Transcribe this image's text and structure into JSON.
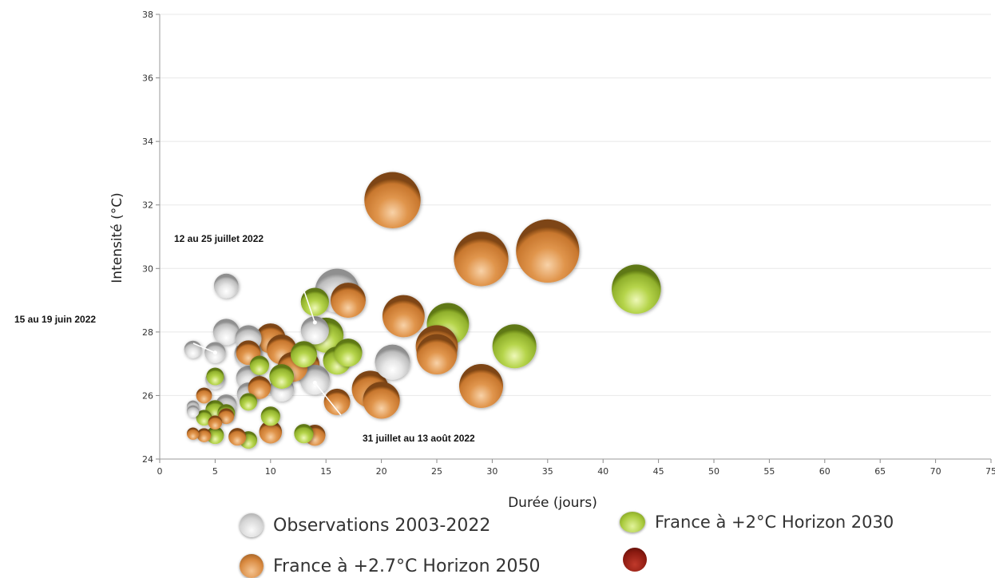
{
  "chart_data": {
    "type": "scatter",
    "xlabel": "Durée  (jours)",
    "ylabel": "Intensité  (°C)",
    "xlim": [
      0,
      75
    ],
    "ylim": [
      24,
      38
    ],
    "xticks": [
      0,
      5,
      10,
      15,
      20,
      25,
      30,
      35,
      40,
      45,
      50,
      55,
      60,
      65,
      70,
      75
    ],
    "yticks": [
      24,
      26,
      28,
      30,
      32,
      34,
      36,
      38
    ],
    "grid": "horizontal",
    "bubble_size": "relative",
    "series": [
      {
        "name": "Observations 2003-2022",
        "color": "#d9d9d9",
        "points": [
          {
            "x": 3,
            "y": 27.45,
            "s": 0.5
          },
          {
            "x": 5,
            "y": 27.35,
            "s": 0.6
          },
          {
            "x": 3,
            "y": 25.65,
            "s": 0.35
          },
          {
            "x": 3,
            "y": 25.5,
            "s": 0.35
          },
          {
            "x": 6,
            "y": 29.45,
            "s": 0.7
          },
          {
            "x": 6,
            "y": 28.0,
            "s": 0.75
          },
          {
            "x": 6,
            "y": 25.7,
            "s": 0.6
          },
          {
            "x": 5,
            "y": 26.5,
            "s": 0.55
          },
          {
            "x": 8,
            "y": 27.8,
            "s": 0.75
          },
          {
            "x": 8,
            "y": 27.3,
            "s": 0.8
          },
          {
            "x": 8,
            "y": 26.55,
            "s": 0.7
          },
          {
            "x": 8,
            "y": 26.05,
            "s": 0.65
          },
          {
            "x": 11,
            "y": 26.2,
            "s": 0.7
          },
          {
            "x": 14,
            "y": 28.05,
            "s": 0.8
          },
          {
            "x": 14,
            "y": 26.5,
            "s": 0.85
          },
          {
            "x": 16,
            "y": 29.3,
            "s": 1.25
          },
          {
            "x": 21,
            "y": 27.05,
            "s": 1.0
          }
        ]
      },
      {
        "name": "France à +2°C Horizon 2030",
        "color": "#a9ca3c",
        "points": [
          {
            "x": 5,
            "y": 26.6,
            "s": 0.5
          },
          {
            "x": 4,
            "y": 25.3,
            "s": 0.45
          },
          {
            "x": 5,
            "y": 25.55,
            "s": 0.55
          },
          {
            "x": 6,
            "y": 25.45,
            "s": 0.5
          },
          {
            "x": 5,
            "y": 24.75,
            "s": 0.5
          },
          {
            "x": 8,
            "y": 24.6,
            "s": 0.5
          },
          {
            "x": 8,
            "y": 25.8,
            "s": 0.5
          },
          {
            "x": 9,
            "y": 26.95,
            "s": 0.55
          },
          {
            "x": 10,
            "y": 25.35,
            "s": 0.55
          },
          {
            "x": 11,
            "y": 26.6,
            "s": 0.7
          },
          {
            "x": 13,
            "y": 27.3,
            "s": 0.75
          },
          {
            "x": 13,
            "y": 24.8,
            "s": 0.55
          },
          {
            "x": 14,
            "y": 28.95,
            "s": 0.8
          },
          {
            "x": 15,
            "y": 27.9,
            "s": 1.0
          },
          {
            "x": 16,
            "y": 27.1,
            "s": 0.8
          },
          {
            "x": 17,
            "y": 27.35,
            "s": 0.8
          },
          {
            "x": 26,
            "y": 28.25,
            "s": 1.2
          },
          {
            "x": 32,
            "y": 27.55,
            "s": 1.25
          },
          {
            "x": 43,
            "y": 29.35,
            "s": 1.4
          }
        ]
      },
      {
        "name": "France à +2.7°C Horizon 2050",
        "color": "#d98a40",
        "points": [
          {
            "x": 3,
            "y": 24.8,
            "s": 0.35
          },
          {
            "x": 4,
            "y": 24.75,
            "s": 0.4
          },
          {
            "x": 4,
            "y": 26.0,
            "s": 0.45
          },
          {
            "x": 5,
            "y": 25.15,
            "s": 0.4
          },
          {
            "x": 6,
            "y": 25.35,
            "s": 0.45
          },
          {
            "x": 7,
            "y": 24.7,
            "s": 0.5
          },
          {
            "x": 8,
            "y": 27.35,
            "s": 0.7
          },
          {
            "x": 9,
            "y": 26.25,
            "s": 0.65
          },
          {
            "x": 10,
            "y": 24.85,
            "s": 0.65
          },
          {
            "x": 10,
            "y": 27.8,
            "s": 0.85
          },
          {
            "x": 11,
            "y": 27.45,
            "s": 0.85
          },
          {
            "x": 12,
            "y": 26.9,
            "s": 0.85
          },
          {
            "x": 13,
            "y": 26.95,
            "s": 0.9
          },
          {
            "x": 14,
            "y": 24.75,
            "s": 0.6
          },
          {
            "x": 16,
            "y": 25.8,
            "s": 0.75
          },
          {
            "x": 17,
            "y": 29.0,
            "s": 1.0
          },
          {
            "x": 19,
            "y": 26.2,
            "s": 1.05
          },
          {
            "x": 20,
            "y": 25.85,
            "s": 1.05
          },
          {
            "x": 21,
            "y": 32.15,
            "s": 1.6
          },
          {
            "x": 22,
            "y": 28.5,
            "s": 1.2
          },
          {
            "x": 25,
            "y": 27.55,
            "s": 1.2
          },
          {
            "x": 25,
            "y": 27.3,
            "s": 1.15
          },
          {
            "x": 29,
            "y": 26.3,
            "s": 1.25
          },
          {
            "x": 29,
            "y": 30.3,
            "s": 1.55
          },
          {
            "x": 35,
            "y": 30.55,
            "s": 1.8
          }
        ]
      }
    ],
    "annotations": [
      {
        "text": "12 au 25 juillet 2022",
        "x": 14,
        "y": 28.3
      },
      {
        "text": "15 au 19 juin 2022",
        "x": 5,
        "y": 27.35
      },
      {
        "text": "31 juillet au 13 août 2022",
        "x": 14,
        "y": 26.4
      }
    ]
  },
  "legend": {
    "obs": "Observations 2003-2022",
    "h2030": "France à +2°C Horizon 2030",
    "h2050": "France à +2.7°C Horizon 2050"
  }
}
